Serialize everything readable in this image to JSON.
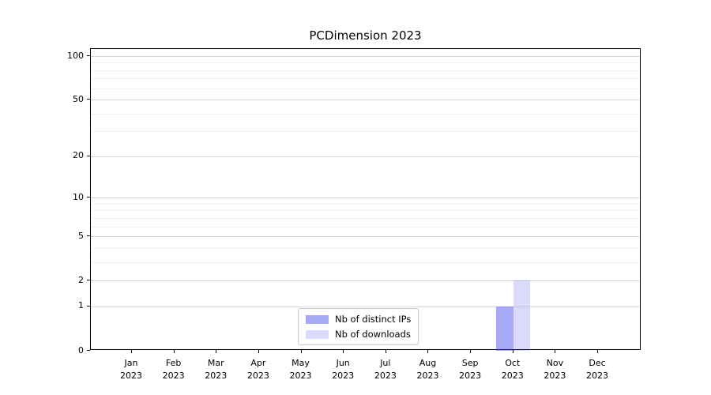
{
  "chart_data": {
    "type": "bar",
    "title": "PCDimension 2023",
    "categories": [
      "Jan 2023",
      "Feb 2023",
      "Mar 2023",
      "Apr 2023",
      "May 2023",
      "Jun 2023",
      "Jul 2023",
      "Aug 2023",
      "Sep 2023",
      "Oct 2023",
      "Nov 2023",
      "Dec 2023"
    ],
    "x_tick_month_line": [
      "Jan",
      "Feb",
      "Mar",
      "Apr",
      "May",
      "Jun",
      "Jul",
      "Aug",
      "Sep",
      "Oct",
      "Nov",
      "Dec"
    ],
    "x_tick_year_line": "2023",
    "series": [
      {
        "name": "Nb of distinct IPs",
        "values": [
          0,
          0,
          0,
          0,
          0,
          0,
          0,
          0,
          0,
          1,
          0,
          0
        ],
        "fill": "rgba(70,70,240,0.47)",
        "color_hex_on_white": "#a8a8f8"
      },
      {
        "name": "Nb of downloads",
        "values": [
          0,
          0,
          0,
          0,
          0,
          0,
          0,
          0,
          0,
          2,
          0,
          0
        ],
        "fill": "rgba(70,70,240,0.20)",
        "color_hex_on_white": "#dadaf9"
      }
    ],
    "yscale": "log1p",
    "y_major_ticks": [
      0,
      1,
      2,
      5,
      10,
      20,
      50,
      100
    ],
    "y_minor_gridline_values": [
      3,
      4,
      6,
      7,
      8,
      9,
      30,
      40,
      60,
      70,
      80,
      90
    ],
    "ylim": [
      0,
      112
    ],
    "xlabel": "",
    "ylabel": "",
    "grid": "horizontal",
    "legend_position": "lower-center-inside"
  }
}
